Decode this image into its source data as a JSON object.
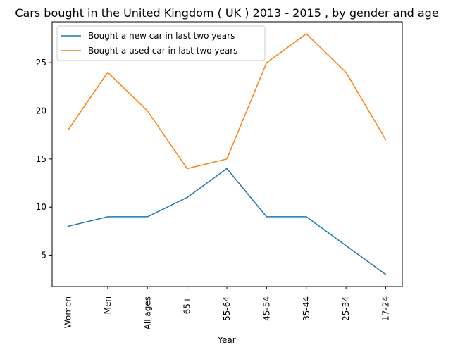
{
  "chart_data": {
    "type": "line",
    "title": "Cars bought in the United Kingdom ( UK ) 2013 - 2015 , by gender and age",
    "xlabel": "Year",
    "ylabel": "",
    "categories": [
      "Women",
      "Men",
      "All ages",
      "65+",
      "55-64",
      "45-54",
      "35-44",
      "25-34",
      "17-24"
    ],
    "series": [
      {
        "name": "Bought a new car in last two years",
        "color": "#1f77b4",
        "values": [
          8,
          9,
          9,
          11,
          14,
          9,
          9,
          6,
          3
        ]
      },
      {
        "name": "Bought a used car in last two years",
        "color": "#ff7f0e",
        "values": [
          18,
          24,
          20,
          14,
          15,
          25,
          28,
          24,
          17
        ]
      }
    ],
    "ylim": [
      1.75,
      29.25
    ],
    "yticks": [
      "5",
      "10",
      "15",
      "20",
      "25"
    ],
    "grid": false,
    "legend": "top-left"
  }
}
